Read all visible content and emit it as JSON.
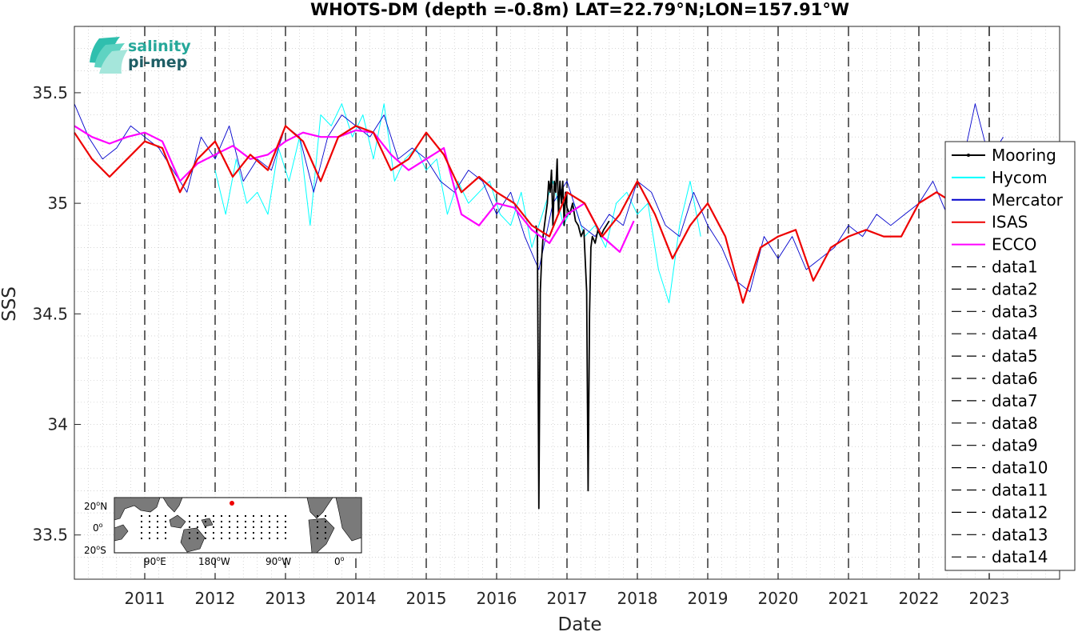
{
  "chart_data": {
    "type": "line",
    "title": "WHOTS-DM (depth =-0.8m) LAT=22.79°N;LON=157.91°W",
    "xlabel": "Date",
    "ylabel": "SSS",
    "xlim": [
      2010.0,
      2024.0
    ],
    "ylim": [
      33.3,
      35.8
    ],
    "x_ticks": [
      2011,
      2012,
      2013,
      2014,
      2015,
      2016,
      2017,
      2018,
      2019,
      2020,
      2021,
      2022,
      2023
    ],
    "y_ticks": [
      33.5,
      34,
      34.5,
      35,
      35.5
    ],
    "y_tick_labels": [
      "33.5",
      "34",
      "34.5",
      "35",
      "35.5"
    ],
    "grid": "minor dotted",
    "legend_position": "right",
    "colors": {
      "Mooring": "#000000",
      "Hycom": "#00ffff",
      "Mercator": "#0000cc",
      "ISAS": "#ee0000",
      "ECCO": "#ff00ff",
      "data": "#000000"
    },
    "series": [
      {
        "name": "Mooring",
        "x": [
          2016.56,
          2016.58,
          2016.6,
          2016.62,
          2016.64,
          2016.66,
          2016.68,
          2016.7,
          2016.72,
          2016.74,
          2016.76,
          2016.78,
          2016.8,
          2016.82,
          2016.84,
          2016.86,
          2016.88,
          2016.9,
          2016.92,
          2016.94,
          2016.96,
          2016.98,
          2017.0,
          2017.04,
          2017.08,
          2017.12,
          2017.16,
          2017.2,
          2017.24,
          2017.28,
          2017.3,
          2017.32,
          2017.34,
          2017.36,
          2017.4,
          2017.44,
          2017.48,
          2017.52,
          2017.56,
          2017.6
        ],
        "y": [
          34.9,
          34.85,
          33.62,
          34.6,
          34.75,
          34.85,
          34.9,
          34.95,
          35.0,
          35.1,
          35.05,
          35.15,
          34.9,
          35.1,
          35.05,
          35.2,
          34.95,
          35.1,
          35.0,
          35.1,
          34.9,
          35.05,
          34.98,
          34.95,
          35.0,
          34.92,
          34.9,
          34.85,
          34.88,
          34.6,
          33.7,
          34.5,
          34.8,
          34.85,
          34.82,
          34.88,
          34.85,
          34.88,
          34.9,
          34.92
        ]
      },
      {
        "name": "Hycom",
        "x": [
          2012.0,
          2012.15,
          2012.3,
          2012.45,
          2012.6,
          2012.75,
          2012.9,
          2013.05,
          2013.2,
          2013.35,
          2013.5,
          2013.65,
          2013.8,
          2013.95,
          2014.1,
          2014.25,
          2014.4,
          2014.55,
          2014.7,
          2014.85,
          2015.0,
          2015.15,
          2015.3,
          2015.45,
          2015.6,
          2015.75,
          2015.9,
          2016.05,
          2016.2,
          2016.35,
          2016.5,
          2016.65,
          2016.8,
          2016.95,
          2017.1,
          2017.25,
          2017.4,
          2017.55,
          2017.7,
          2017.85,
          2018.0,
          2018.15,
          2018.3,
          2018.45,
          2018.6,
          2018.75,
          2018.9
        ],
        "y": [
          35.15,
          34.95,
          35.2,
          35.0,
          35.05,
          34.95,
          35.25,
          35.1,
          35.3,
          34.9,
          35.4,
          35.35,
          35.45,
          35.3,
          35.4,
          35.2,
          35.45,
          35.1,
          35.2,
          35.25,
          35.15,
          35.2,
          34.95,
          35.1,
          35.0,
          35.05,
          35.1,
          34.95,
          34.9,
          35.05,
          34.8,
          34.95,
          35.1,
          34.9,
          35.0,
          34.85,
          34.9,
          34.8,
          35.0,
          35.05,
          34.95,
          35.0,
          34.7,
          34.55,
          34.9,
          35.1,
          34.85
        ]
      },
      {
        "name": "Mercator",
        "x": [
          2010.0,
          2010.2,
          2010.4,
          2010.6,
          2010.8,
          2011.0,
          2011.2,
          2011.4,
          2011.6,
          2011.8,
          2012.0,
          2012.2,
          2012.4,
          2012.6,
          2012.8,
          2013.0,
          2013.2,
          2013.4,
          2013.6,
          2013.8,
          2014.0,
          2014.2,
          2014.4,
          2014.6,
          2014.8,
          2015.0,
          2015.2,
          2015.4,
          2015.6,
          2015.8,
          2016.0,
          2016.2,
          2016.4,
          2016.6,
          2016.8,
          2017.0,
          2017.2,
          2017.4,
          2017.6,
          2017.8,
          2018.0,
          2018.2,
          2018.4,
          2018.6,
          2018.8,
          2019.0,
          2019.2,
          2019.4,
          2019.6,
          2019.8,
          2020.0,
          2020.2,
          2020.4,
          2020.6,
          2020.8,
          2021.0,
          2021.2,
          2021.4,
          2021.6,
          2021.8,
          2022.0,
          2022.2,
          2022.4,
          2022.6,
          2022.8,
          2023.0,
          2023.2
        ],
        "y": [
          35.45,
          35.3,
          35.2,
          35.25,
          35.35,
          35.3,
          35.25,
          35.15,
          35.05,
          35.3,
          35.2,
          35.35,
          35.1,
          35.2,
          35.15,
          35.35,
          35.3,
          35.05,
          35.3,
          35.4,
          35.35,
          35.3,
          35.4,
          35.2,
          35.25,
          35.2,
          35.1,
          35.05,
          35.15,
          35.1,
          34.95,
          35.05,
          34.85,
          34.7,
          35.0,
          35.1,
          34.9,
          34.85,
          34.95,
          34.9,
          35.1,
          35.05,
          34.9,
          34.85,
          35.05,
          34.9,
          34.8,
          34.65,
          34.6,
          34.85,
          34.75,
          34.85,
          34.7,
          34.75,
          34.8,
          34.9,
          34.85,
          34.95,
          34.9,
          34.95,
          35.0,
          35.1,
          34.95,
          35.15,
          35.45,
          35.2,
          35.3
        ]
      },
      {
        "name": "ISAS",
        "x": [
          2010.0,
          2010.25,
          2010.5,
          2010.75,
          2011.0,
          2011.25,
          2011.5,
          2011.75,
          2012.0,
          2012.25,
          2012.5,
          2012.75,
          2013.0,
          2013.25,
          2013.5,
          2013.75,
          2014.0,
          2014.25,
          2014.5,
          2014.75,
          2015.0,
          2015.25,
          2015.5,
          2015.75,
          2016.0,
          2016.25,
          2016.5,
          2016.75,
          2017.0,
          2017.25,
          2017.5,
          2017.75,
          2018.0,
          2018.25,
          2018.5,
          2018.75,
          2019.0,
          2019.25,
          2019.5,
          2019.75,
          2020.0,
          2020.25,
          2020.5,
          2020.75,
          2021.0,
          2021.25,
          2021.5,
          2021.75,
          2022.0,
          2022.25,
          2022.5,
          2022.75,
          2022.95
        ],
        "y": [
          35.32,
          35.2,
          35.12,
          35.2,
          35.28,
          35.25,
          35.05,
          35.2,
          35.28,
          35.12,
          35.22,
          35.15,
          35.35,
          35.28,
          35.1,
          35.3,
          35.35,
          35.32,
          35.15,
          35.2,
          35.32,
          35.22,
          35.05,
          35.12,
          35.05,
          35.0,
          34.9,
          34.85,
          35.05,
          35.0,
          34.85,
          34.95,
          35.1,
          34.95,
          34.75,
          34.9,
          35.0,
          34.85,
          34.55,
          34.8,
          34.85,
          34.88,
          34.65,
          34.8,
          34.85,
          34.88,
          34.85,
          34.85,
          35.0,
          35.05,
          35.0,
          35.15,
          35.27
        ]
      },
      {
        "name": "ECCO",
        "x": [
          2010.0,
          2010.25,
          2010.5,
          2010.75,
          2011.0,
          2011.25,
          2011.5,
          2011.75,
          2012.0,
          2012.25,
          2012.5,
          2012.75,
          2013.0,
          2013.25,
          2013.5,
          2013.75,
          2014.0,
          2014.25,
          2014.5,
          2014.75,
          2015.0,
          2015.25,
          2015.5,
          2015.75,
          2016.0,
          2016.25,
          2016.5,
          2016.75,
          2017.0,
          2017.25,
          2017.5,
          2017.75,
          2017.95
        ],
        "y": [
          35.35,
          35.3,
          35.27,
          35.3,
          35.32,
          35.28,
          35.1,
          35.18,
          35.22,
          35.26,
          35.2,
          35.22,
          35.28,
          35.32,
          35.3,
          35.3,
          35.33,
          35.32,
          35.22,
          35.15,
          35.2,
          35.25,
          34.95,
          34.9,
          35.0,
          34.98,
          34.88,
          34.82,
          34.95,
          35.0,
          34.85,
          34.78,
          34.92
        ]
      }
    ],
    "vertical_lines": {
      "names": [
        "data1",
        "data2",
        "data3",
        "data4",
        "data5",
        "data6",
        "data7",
        "data8",
        "data9",
        "data10",
        "data11",
        "data12",
        "data13",
        "data14"
      ],
      "x": [
        2011,
        2012,
        2013,
        2014,
        2015,
        2016,
        2017,
        2018,
        2019,
        2020,
        2021,
        2022,
        2023,
        2023
      ]
    },
    "legend": [
      "Mooring",
      "Hycom",
      "Mercator",
      "ISAS",
      "ECCO",
      "data1",
      "data2",
      "data3",
      "data4",
      "data5",
      "data6",
      "data7",
      "data8",
      "data9",
      "data10",
      "data11",
      "data12",
      "data13",
      "data14"
    ]
  },
  "logo": {
    "line1": "salinity",
    "line2": "pi-mep"
  },
  "inset_map": {
    "y_ticks": [
      "20",
      "0",
      "20"
    ],
    "y_suffix": [
      "N",
      "",
      "S"
    ],
    "x_ticks": [
      "90",
      "180",
      "90",
      "0"
    ],
    "x_suffix": [
      "E",
      "W",
      "W",
      ""
    ]
  }
}
